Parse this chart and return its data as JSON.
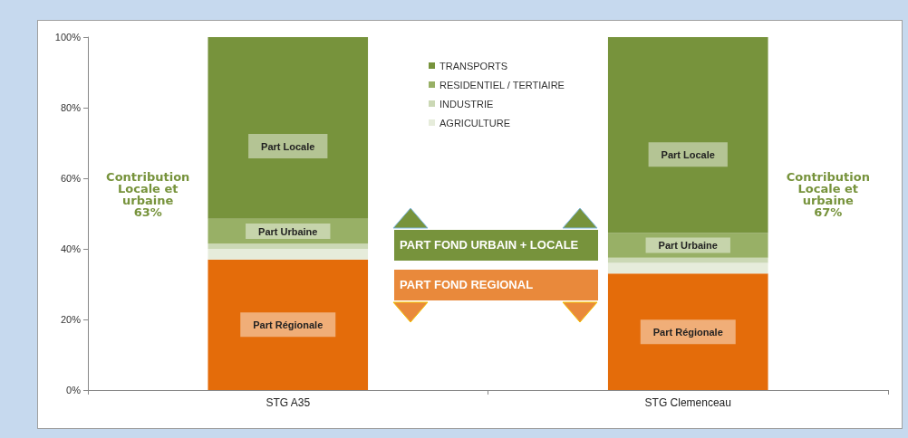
{
  "chart_data": {
    "type": "bar",
    "stacked": true,
    "categories": [
      "STG A35",
      "STG Clemenceau"
    ],
    "series": [
      {
        "color": "#e46c0a",
        "values": [
          37,
          33
        ]
      },
      {
        "name": "AGRICULTURE",
        "color": "#e6ecdb",
        "values": [
          3,
          3
        ]
      },
      {
        "name": "INDUSTRIE",
        "color": "#cbd8b5",
        "values": [
          1.5,
          1.5
        ]
      },
      {
        "name": "RESIDENTIEL / TERTIAIRE",
        "color": "#98b066",
        "values": [
          7,
          7
        ]
      },
      {
        "name": "TRANSPORTS",
        "color": "#77933c",
        "values": [
          51.5,
          55.5
        ]
      }
    ],
    "ylim": [
      0,
      100
    ],
    "yticks": [
      {
        "value": 0,
        "label": "0%"
      },
      {
        "value": 20,
        "label": "20%"
      },
      {
        "value": 40,
        "label": "40%"
      },
      {
        "value": 60,
        "label": "60%"
      },
      {
        "value": 80,
        "label": "80%"
      },
      {
        "value": 100,
        "label": "100%"
      }
    ],
    "grid": false,
    "legend": "top",
    "annotations": [
      "Contribution\nLocale et\nurbaine\n63%",
      "Contribution\nLocale et\nurbaine\n67%",
      "PART FOND URBAIN + LOCALE",
      "PART FOND REGIONAL",
      "Part Locale",
      "Part Urbaine",
      "Part Régionale",
      "Part Locale",
      "Part Urbaine",
      "Part Régionale"
    ]
  }
}
